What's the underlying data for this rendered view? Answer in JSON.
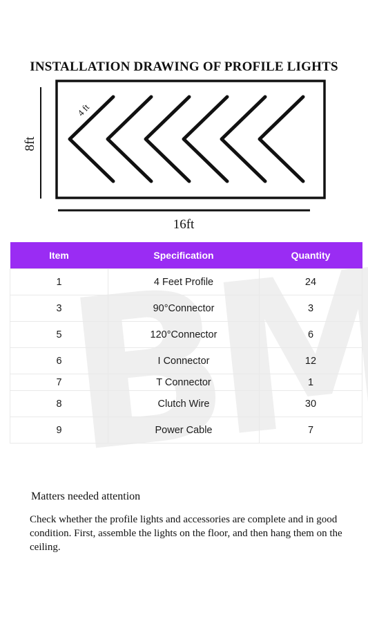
{
  "title": "INSTALLATION DRAWING OF PROFILE LIGHTS",
  "drawing": {
    "height_label": "8ft",
    "width_label": "16ft",
    "segment_label": "4 ft",
    "chevron_count": 6,
    "line_color": "#111111"
  },
  "table": {
    "header_color": "#9a2cf3",
    "headers": [
      "Item",
      "Specification",
      "Quantity"
    ],
    "rows": [
      {
        "item": "1",
        "spec": "4 Feet Profile",
        "qty": "24"
      },
      {
        "item": "3",
        "spec": "90°Connector",
        "qty": "3"
      },
      {
        "item": "5",
        "spec": "120°Connector",
        "qty": "6"
      },
      {
        "item": "6",
        "spec": "I Connector",
        "qty": "12"
      },
      {
        "item": "7",
        "spec": "T Connector",
        "qty": "1"
      },
      {
        "item": "8",
        "spec": "Clutch Wire",
        "qty": "30"
      },
      {
        "item": "9",
        "spec": "Power Cable",
        "qty": "7"
      }
    ]
  },
  "watermark": "BM",
  "notes": {
    "heading": "Matters needed attention",
    "body": "Check whether the  profile lights and accessories are complete and in good condition. First, assemble the lights on the floor, and then hang them on the ceiling."
  }
}
